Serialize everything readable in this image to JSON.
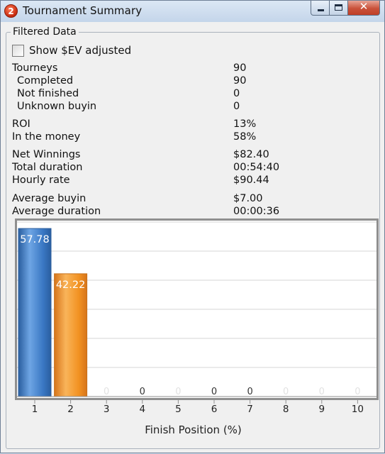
{
  "window": {
    "title": "Tournament Summary",
    "icon_glyph": "2",
    "close_glyph": "✕",
    "buttons": [
      "minimize-icon",
      "maximize-icon",
      "close-icon"
    ]
  },
  "filter": {
    "legend": "Filtered Data",
    "ev_checkbox_label": "Show $EV adjusted",
    "ev_checked": false
  },
  "stats": {
    "tourneys": {
      "label": "Tourneys",
      "value": "90"
    },
    "completed": {
      "label": "Completed",
      "value": "90"
    },
    "not_finished": {
      "label": "Not finished",
      "value": "0"
    },
    "unknown_buyin": {
      "label": "Unknown buyin",
      "value": "0"
    },
    "roi": {
      "label": "ROI",
      "value": "13%"
    },
    "itm": {
      "label": "In the money",
      "value": "58%"
    },
    "net_winnings": {
      "label": "Net Winnings",
      "value": "$82.40"
    },
    "total_duration": {
      "label": "Total duration",
      "value": "00:54:40"
    },
    "hourly_rate": {
      "label": "Hourly rate",
      "value": "$90.44"
    },
    "avg_buyin": {
      "label": "Average buyin",
      "value": "$7.00"
    },
    "avg_duration": {
      "label": "Average duration",
      "value": "00:00:36"
    }
  },
  "chart_data": {
    "type": "bar",
    "categories": [
      "1",
      "2",
      "3",
      "4",
      "5",
      "6",
      "7",
      "8",
      "9",
      "10"
    ],
    "values": [
      57.78,
      42.22,
      0,
      0,
      0,
      0,
      0,
      0,
      0,
      0
    ],
    "data_labels": [
      "57.78",
      "42.22",
      "0",
      "0",
      "0",
      "0",
      "0",
      "0",
      "0",
      "0"
    ],
    "xlabel": "Finish Position (%)",
    "ylabel": "",
    "ylim": [
      0,
      60
    ],
    "grid": true,
    "legend": "none",
    "colors": {
      "bar1": "#3a78c4",
      "bar2": "#f29222",
      "grid": "#d4d4d4",
      "zero_label_faint": "#e2e2e2",
      "zero_label_dark": "#333333"
    }
  }
}
